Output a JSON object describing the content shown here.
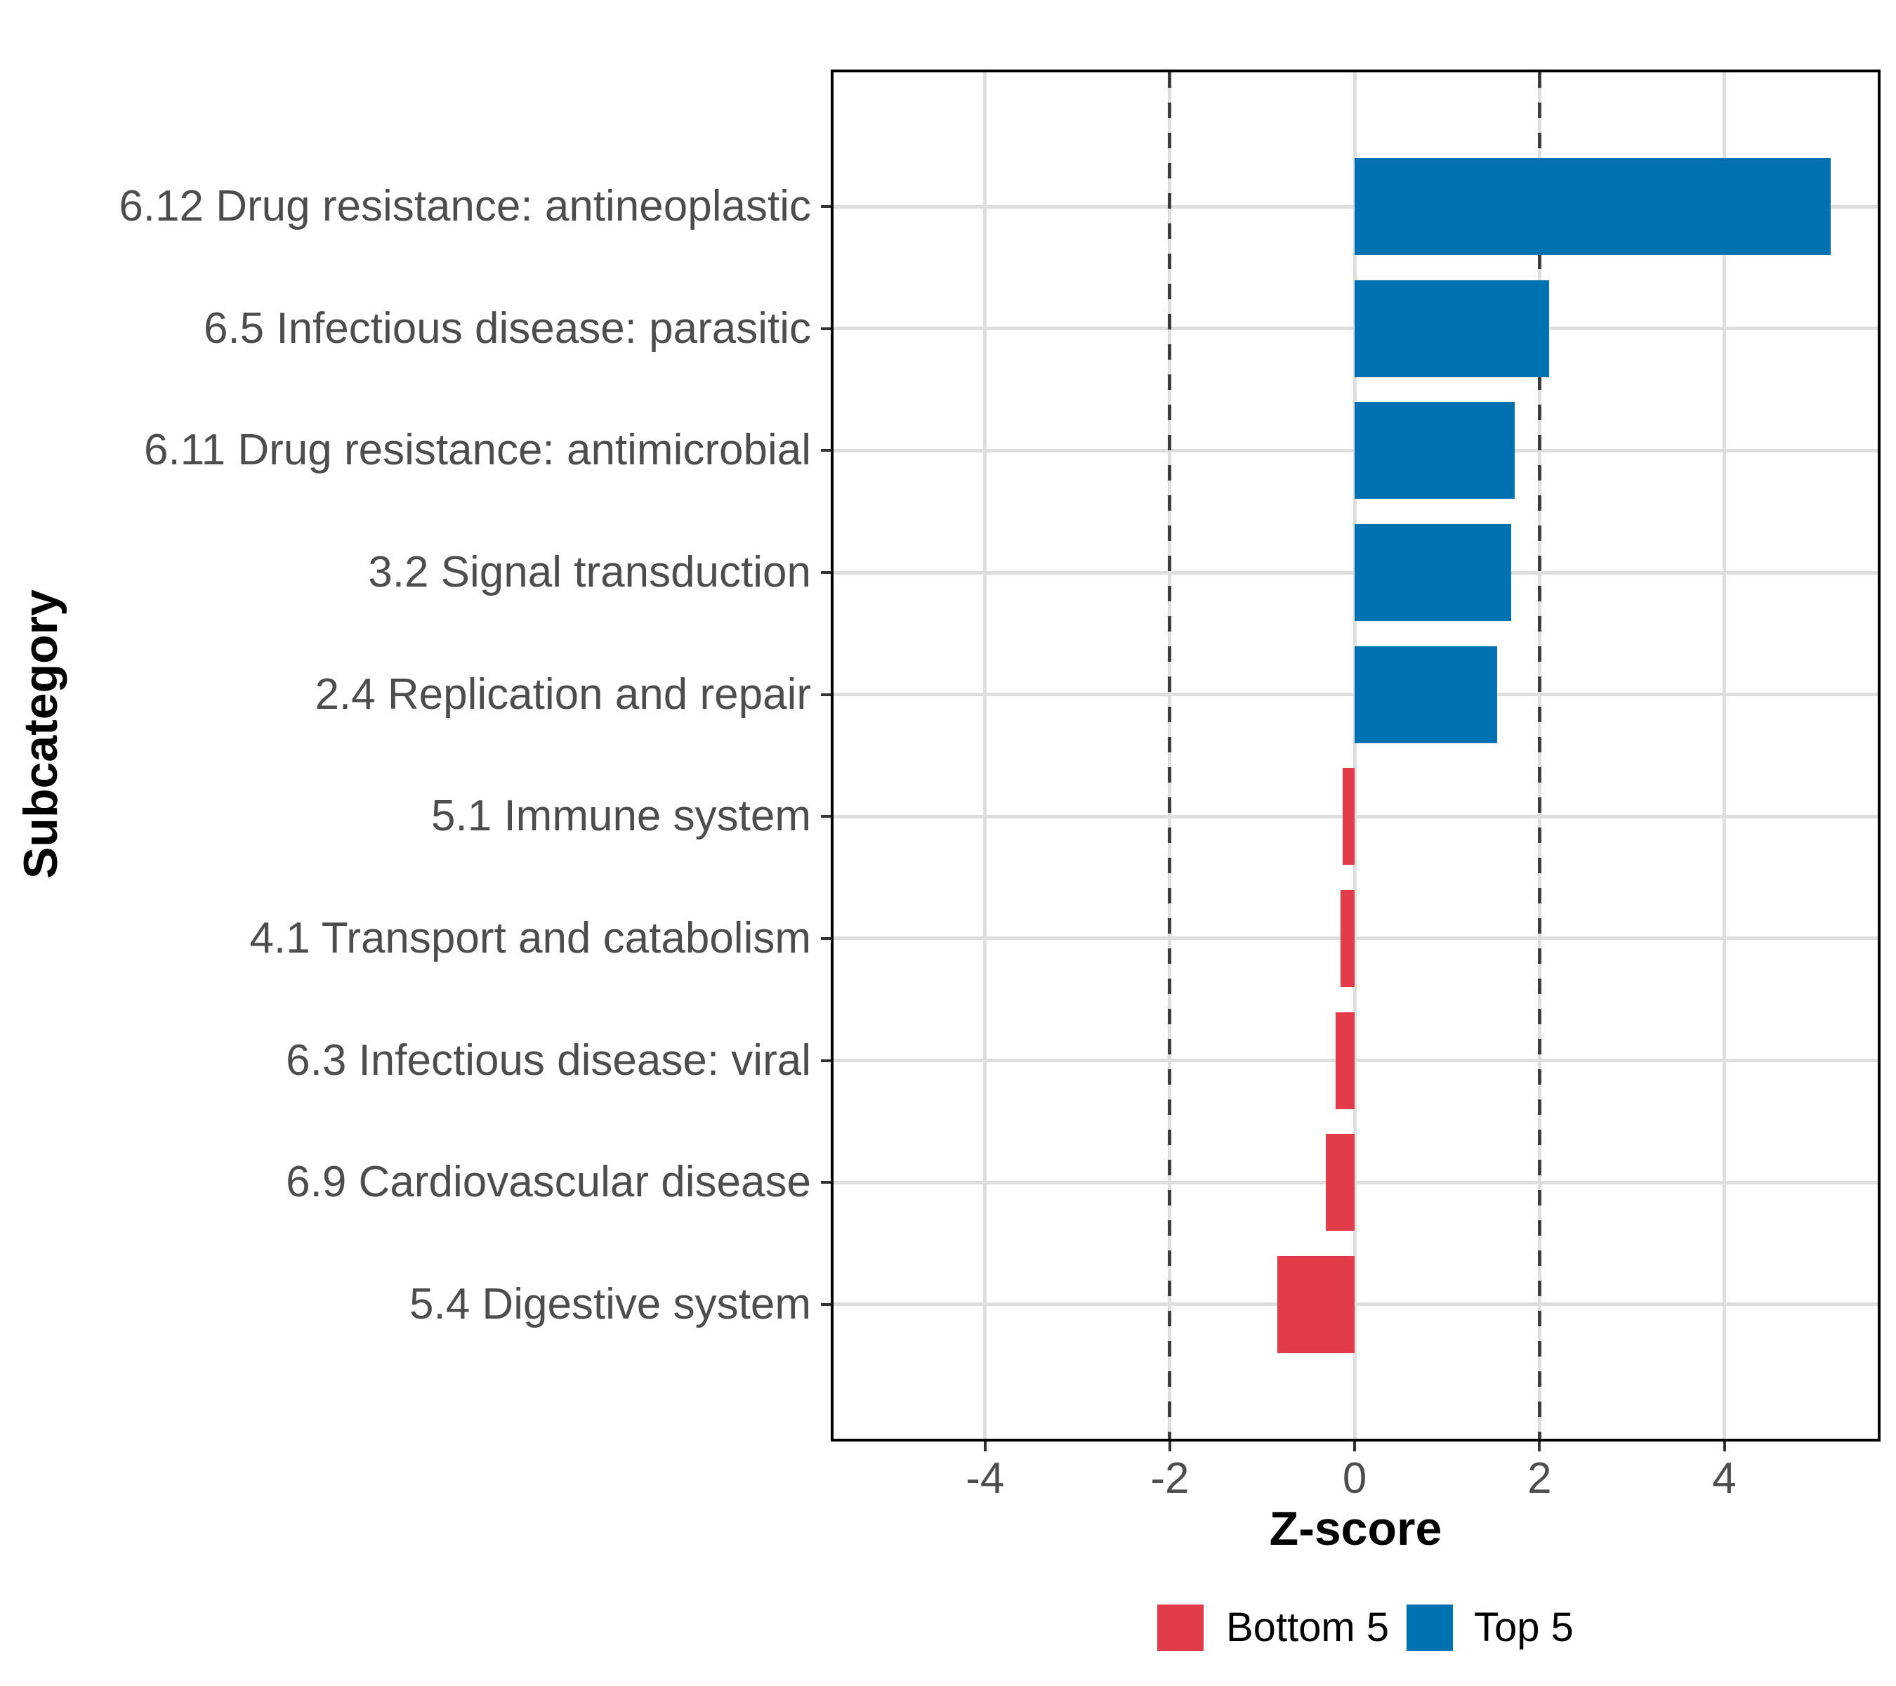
{
  "chart_data": {
    "type": "bar",
    "orientation": "horizontal",
    "title": "",
    "xlabel": "Z-score",
    "ylabel": "Subcategory",
    "categories": [
      "6.12 Drug resistance: antineoplastic",
      "6.5 Infectious disease: parasitic",
      "6.11 Drug resistance: antimicrobial",
      "3.2 Signal transduction",
      "2.4 Replication and repair",
      "5.1 Immune system",
      "4.1 Transport and catabolism",
      "6.3 Infectious disease: viral",
      "6.9 Cardiovascular disease",
      "5.4 Digestive system"
    ],
    "series": [
      {
        "name": "Z-score",
        "values": [
          5.15,
          2.1,
          1.73,
          1.69,
          1.54,
          -0.13,
          -0.15,
          -0.21,
          -0.31,
          -0.84
        ],
        "groups": [
          "Top 5",
          "Top 5",
          "Top 5",
          "Top 5",
          "Top 5",
          "Bottom 5",
          "Bottom 5",
          "Bottom 5",
          "Bottom 5",
          "Bottom 5"
        ]
      }
    ],
    "xlim": [
      -5.64,
      5.66
    ],
    "xticks": [
      -4,
      -2,
      0,
      2,
      4
    ],
    "xtick_labels": [
      "-4",
      "-2",
      "0",
      "2",
      "4"
    ],
    "reference_lines": [
      -2,
      2
    ],
    "grid": true,
    "legend_position": "bottom",
    "legend": {
      "items": [
        {
          "label": "Bottom 5",
          "color": "#E23C4A"
        },
        {
          "label": "Top 5",
          "color": "#0072B2"
        }
      ]
    },
    "colors": {
      "top5_bar": "#0072B2",
      "bottom5_bar": "#E23C4A",
      "gridline": "#DEDEDE",
      "reference_line": "#3D3D3D",
      "axis_text": "#4D4D4D",
      "tick_mark": "#333333",
      "panel_border": "#000000"
    }
  }
}
